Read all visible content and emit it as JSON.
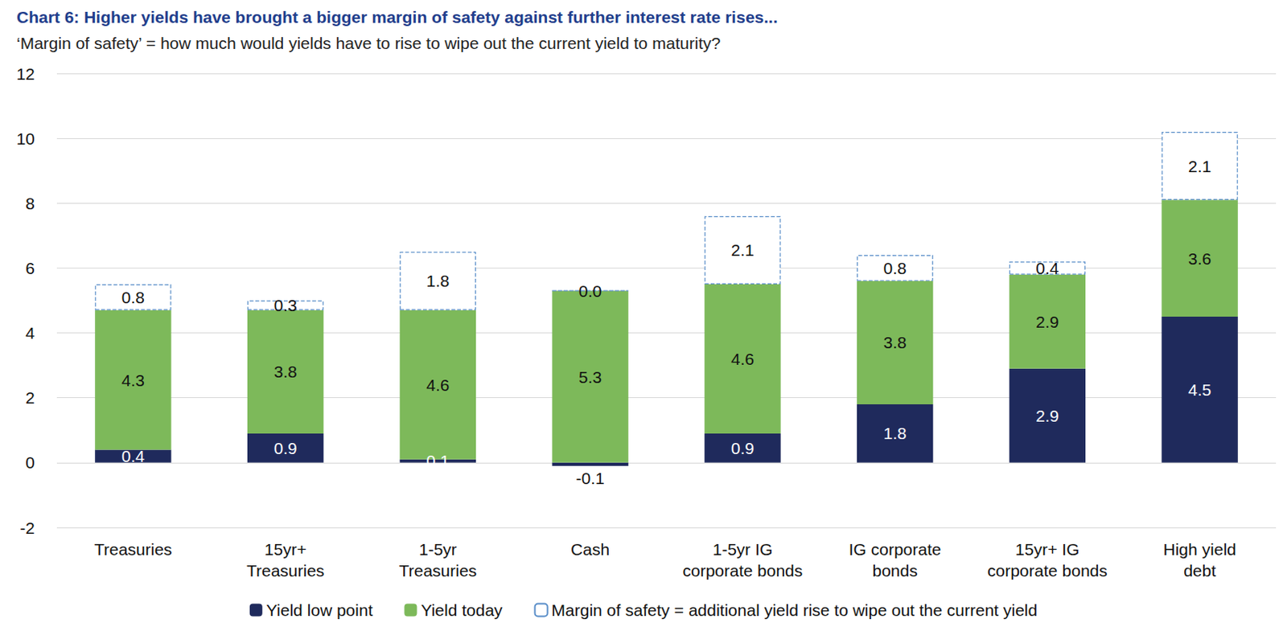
{
  "chart_data": {
    "type": "bar",
    "title": "Chart 6: Higher yields have brought a bigger margin of safety against further interest rate rises...",
    "subtitle": "‘Margin of safety’ = how much would yields have to rise to wipe out the current yield to maturity?",
    "categories": [
      "Treasuries",
      "15yr+\nTreasuries",
      "1-5yr\nTreasuries",
      "Cash",
      "1-5yr IG\ncorporate bonds",
      "IG corporate\nbonds",
      "15yr+ IG\ncorporate bonds",
      "High yield\ndebt"
    ],
    "series": [
      {
        "name": "Yield low point",
        "color": "#1f2a5c",
        "values": [
          0.4,
          0.9,
          0.1,
          -0.1,
          0.9,
          1.8,
          2.9,
          4.5
        ]
      },
      {
        "name": "Yield today",
        "color": "#7db95a",
        "values": [
          4.3,
          3.8,
          4.6,
          5.3,
          4.6,
          3.8,
          2.9,
          3.6
        ]
      },
      {
        "name": "Margin of safety = additional yield rise to wipe out the current yield",
        "color": "#5b8fc9",
        "line_style": "dashed",
        "values": [
          0.8,
          0.3,
          1.8,
          0.0,
          2.1,
          0.8,
          0.4,
          2.1
        ],
        "value_labels": [
          "0.8",
          "0.3",
          "1.8",
          "0.0",
          "2.1",
          "0.8",
          "0.4",
          "2.1"
        ]
      }
    ],
    "stacked": true,
    "data_labels": true,
    "ylim": [
      -2,
      12
    ],
    "yticks": [
      -2,
      0,
      2,
      4,
      6,
      8,
      10,
      12
    ],
    "grid": true,
    "legend": "bottom"
  }
}
